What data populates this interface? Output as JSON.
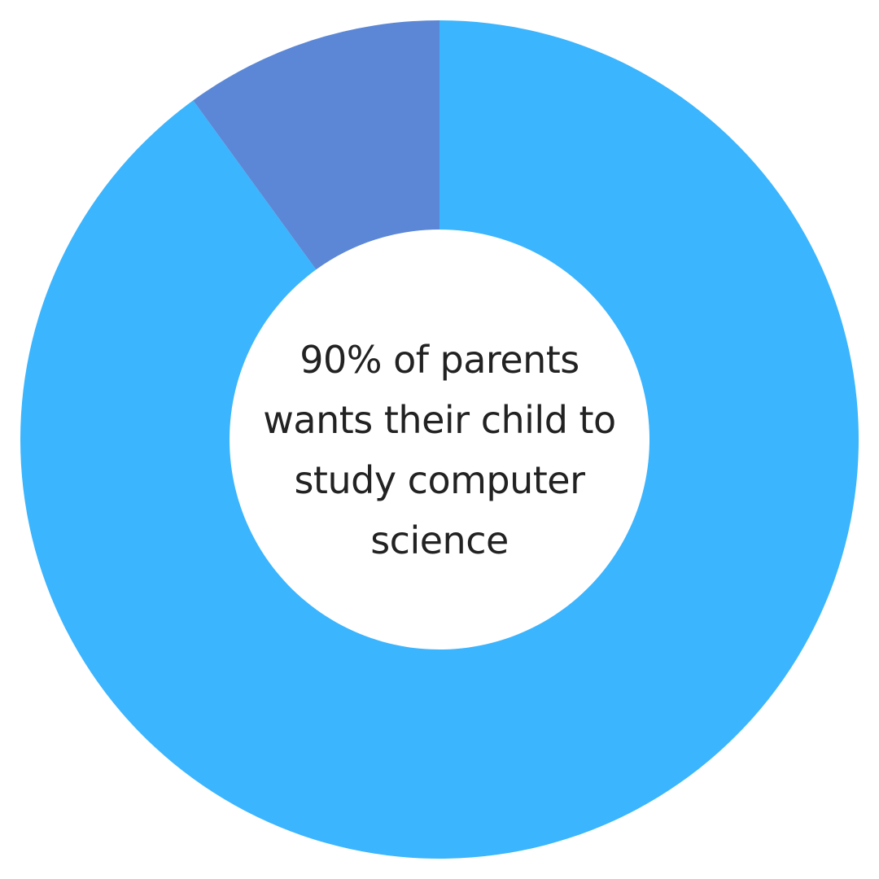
{
  "chart_data": {
    "type": "pie",
    "style": "donut",
    "categories": [
      "",
      ""
    ],
    "values": [
      90,
      10
    ],
    "colors": [
      "#3BB5FE",
      "#5B87D6"
    ],
    "center_text_lines": [
      "90% of parents",
      "wants their child to",
      "study computer",
      "science"
    ],
    "legend": "none"
  }
}
